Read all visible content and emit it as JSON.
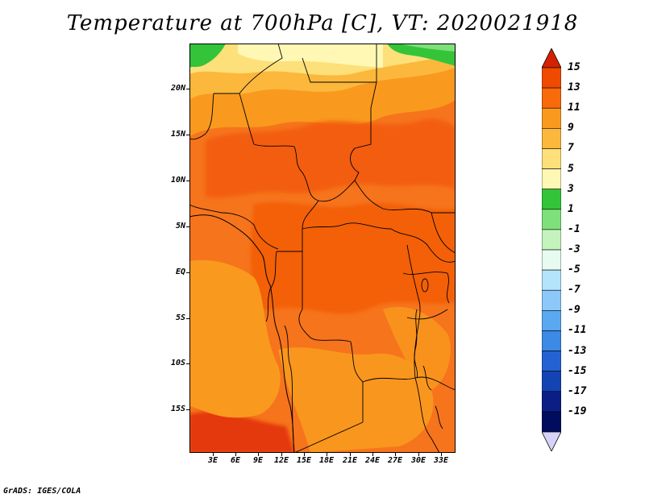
{
  "title": "Temperature at 700hPa [C], VT: 2020021918",
  "footer": "GrADS: IGES/COLA",
  "map": {
    "lat_labels": [
      "20N",
      "15N",
      "10N",
      "5N",
      "EQ",
      "5S",
      "10S",
      "15S"
    ],
    "lon_labels": [
      "3E",
      "6E",
      "9E",
      "12E",
      "15E",
      "18E",
      "21E",
      "24E",
      "27E",
      "30E",
      "33E"
    ]
  },
  "colorbar": {
    "labels": [
      "15",
      "13",
      "11",
      "9",
      "7",
      "5",
      "3",
      "1",
      "-1",
      "-3",
      "-5",
      "-7",
      "-9",
      "-11",
      "-13",
      "-15",
      "-17",
      "-19"
    ],
    "colors": [
      "#d42200",
      "#f04a00",
      "#f86a0a",
      "#f99a1e",
      "#fcb83c",
      "#fde07a",
      "#fef8b4",
      "#33c43a",
      "#7ee07a",
      "#c4f4bc",
      "#e8fbf0",
      "#b4e4fb",
      "#8cc8f8",
      "#5aa8f0",
      "#3a8ae6",
      "#2462d4",
      "#1444b4",
      "#0a1e86",
      "#000c5e",
      "#d6d2f8"
    ]
  }
}
